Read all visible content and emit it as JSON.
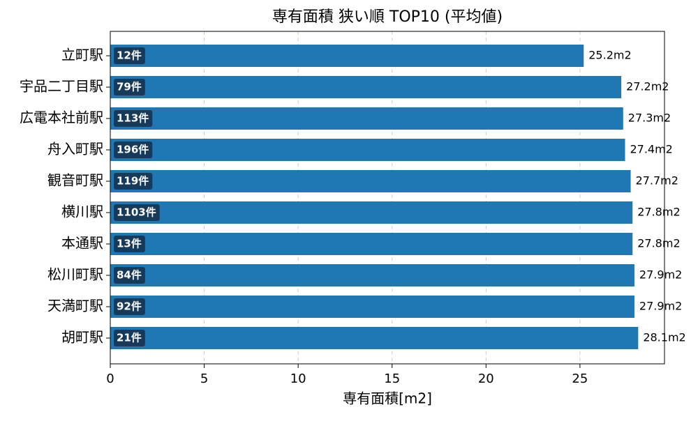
{
  "chart_data": {
    "type": "barh",
    "title": "専有面積 狭い順 TOP10 (平均値)",
    "xlabel": "専有面積[m2]",
    "categories": [
      "立町駅",
      "宇品二丁目駅",
      "広電本社前駅",
      "舟入町駅",
      "観音町駅",
      "横川駅",
      "本通駅",
      "松川町駅",
      "天満町駅",
      "胡町駅"
    ],
    "values": [
      25.2,
      27.2,
      27.3,
      27.4,
      27.7,
      27.8,
      27.8,
      27.9,
      27.9,
      28.1
    ],
    "value_labels": [
      "25.2m2",
      "27.2m2",
      "27.3m2",
      "27.4m2",
      "27.7m2",
      "27.8m2",
      "27.8m2",
      "27.9m2",
      "27.9m2",
      "28.1m2"
    ],
    "count_labels": [
      "12件",
      "79件",
      "113件",
      "196件",
      "119件",
      "1103件",
      "13件",
      "84件",
      "92件",
      "21件"
    ],
    "color": "#1f77b4",
    "xlim": [
      0,
      29.5
    ],
    "xticks": [
      0,
      5,
      10,
      15,
      20,
      25
    ],
    "grid": true
  }
}
